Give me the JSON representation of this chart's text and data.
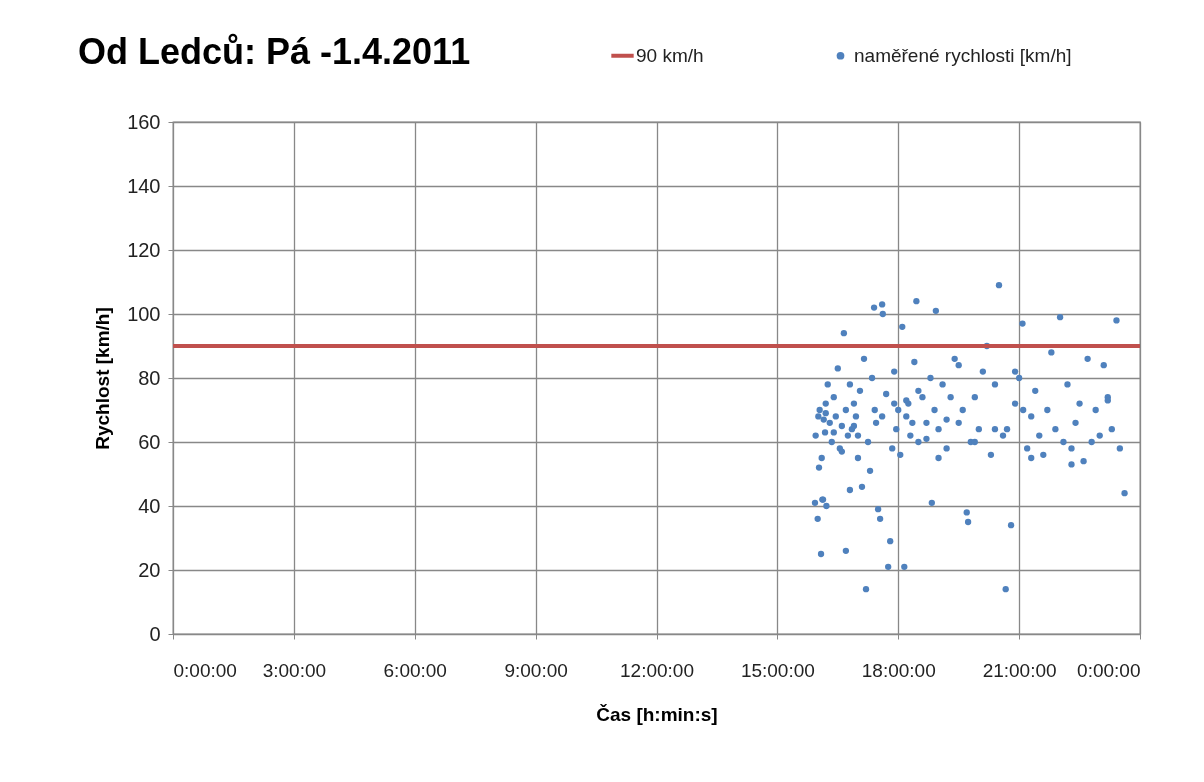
{
  "chart_data": {
    "type": "scatter",
    "title": "Od Ledců: Pá -1.4.2011",
    "xlabel": "Čas [h:min:s]",
    "ylabel": "Rychlost [km/h]",
    "xlim": [
      "2011-04-01T00:00",
      "2011-04-02T00:00"
    ],
    "xticks": [
      {
        "value": "2011-04-01T00:00",
        "label": "0:00:00"
      },
      {
        "value": "2011-04-01T03:00",
        "label": "3:00:00"
      },
      {
        "value": "2011-04-01T06:00",
        "label": "6:00:00"
      },
      {
        "value": "2011-04-01T09:00",
        "label": "9:00:00"
      },
      {
        "value": "2011-04-01T12:00",
        "label": "12:00:00"
      },
      {
        "value": "2011-04-01T15:00",
        "label": "15:00:00"
      },
      {
        "value": "2011-04-01T18:00",
        "label": "18:00:00"
      },
      {
        "value": "2011-04-01T21:00",
        "label": "21:00:00"
      },
      {
        "value": "2011-04-02T00:00",
        "label": "0:00:00"
      }
    ],
    "ylim": [
      0,
      160
    ],
    "yticks": [
      0,
      20,
      40,
      60,
      80,
      100,
      120,
      140,
      160
    ],
    "grid": true,
    "legend": "top right",
    "marker": "circle",
    "ref_lines": [
      {
        "axis": "y",
        "value": 90,
        "label": "90 km/h",
        "color": "#c0504d"
      }
    ],
    "series": [
      {
        "name": "naměřené rychlosti [km/h]",
        "color": "#4f81bd",
        "x": [
          "2011-04-01T15:56",
          "2011-04-01T15:57",
          "2011-04-01T16:00",
          "2011-04-01T16:01",
          "2011-04-01T16:03",
          "2011-04-01T16:05",
          "2011-04-01T16:06",
          "2011-04-01T16:07",
          "2011-04-01T16:09",
          "2011-04-01T16:11",
          "2011-04-01T16:12",
          "2011-04-01T16:13",
          "2011-04-01T16:15",
          "2011-04-01T16:18",
          "2011-04-01T16:21",
          "2011-04-01T16:24",
          "2011-04-01T16:27",
          "2011-04-01T16:30",
          "2011-04-01T16:33",
          "2011-04-01T16:36",
          "2011-04-01T16:39",
          "2011-04-01T16:42",
          "2011-04-01T16:45",
          "2011-04-01T16:48",
          "2011-04-01T16:51",
          "2011-04-01T16:54",
          "2011-04-01T16:57",
          "2011-04-01T17:00",
          "2011-04-01T17:03",
          "2011-04-01T17:06",
          "2011-04-01T17:09",
          "2011-04-01T17:12",
          "2011-04-01T17:15",
          "2011-04-01T17:18",
          "2011-04-01T17:21",
          "2011-04-01T17:24",
          "2011-04-01T17:25",
          "2011-04-01T17:27",
          "2011-04-01T17:30",
          "2011-04-01T17:33",
          "2011-04-01T17:36",
          "2011-04-01T17:37",
          "2011-04-01T17:42",
          "2011-04-01T17:45",
          "2011-04-01T17:48",
          "2011-04-01T17:51",
          "2011-04-01T17:54",
          "2011-04-01T17:57",
          "2011-04-01T18:00",
          "2011-04-01T18:03",
          "2011-04-01T18:06",
          "2011-04-01T18:09",
          "2011-04-01T18:12",
          "2011-04-01T18:15",
          "2011-04-01T18:18",
          "2011-04-01T18:21",
          "2011-04-01T18:24",
          "2011-04-01T18:27",
          "2011-04-01T18:30",
          "2011-04-01T18:36",
          "2011-04-01T18:42",
          "2011-04-01T18:48",
          "2011-04-01T18:50",
          "2011-04-01T18:54",
          "2011-04-01T18:56",
          "2011-04-01T19:00",
          "2011-04-01T19:06",
          "2011-04-01T19:12",
          "2011-04-01T19:18",
          "2011-04-01T19:24",
          "2011-04-01T19:30",
          "2011-04-01T19:36",
          "2011-04-01T19:42",
          "2011-04-01T19:44",
          "2011-04-01T19:48",
          "2011-04-01T19:54",
          "2011-04-01T20:00",
          "2011-04-01T20:06",
          "2011-04-01T20:12",
          "2011-04-01T20:18",
          "2011-04-01T20:24",
          "2011-04-01T20:30",
          "2011-04-01T20:36",
          "2011-04-01T20:40",
          "2011-04-01T20:42",
          "2011-04-01T20:48",
          "2011-04-01T20:54",
          "2011-04-01T21:00",
          "2011-04-01T21:05",
          "2011-04-01T21:12",
          "2011-04-01T21:18",
          "2011-04-01T21:24",
          "2011-04-01T21:30",
          "2011-04-01T21:36",
          "2011-04-01T21:42",
          "2011-04-01T21:48",
          "2011-04-01T21:54",
          "2011-04-01T22:01",
          "2011-04-01T22:06",
          "2011-04-01T22:12",
          "2011-04-01T22:18",
          "2011-04-01T22:24",
          "2011-04-01T22:30",
          "2011-04-01T22:36",
          "2011-04-01T22:42",
          "2011-04-01T22:48",
          "2011-04-01T22:54",
          "2011-04-01T23:00",
          "2011-04-01T23:06",
          "2011-04-01T23:12",
          "2011-04-01T23:18",
          "2011-04-01T23:25",
          "2011-04-01T23:30",
          "2011-04-01T23:37",
          "2011-04-01T16:02",
          "2011-04-01T16:08",
          "2011-04-01T16:42",
          "2011-04-01T16:48",
          "2011-04-01T16:24",
          "2011-04-01T16:54",
          "2011-04-01T17:36",
          "2011-04-01T18:12",
          "2011-04-01T18:42",
          "2011-04-01T19:12",
          "2011-04-01T19:54",
          "2011-04-01T20:24",
          "2011-04-01T21:18",
          "2011-04-01T22:18",
          "2011-04-01T23:12",
          "2011-04-01T16:36",
          "2011-04-01T17:54",
          "2011-04-01T19:30",
          "2011-04-01T20:54",
          "2011-04-01T16:12",
          "2011-04-01T17:00",
          "2011-04-01T18:30",
          "2011-04-01T19:00",
          "2011-04-01T21:06"
        ],
        "values": [
          41,
          62,
          36,
          68,
          70,
          25,
          55,
          42,
          67,
          63,
          72,
          40,
          78,
          66,
          60,
          74,
          68,
          83,
          58,
          65,
          94,
          70,
          62,
          78,
          64,
          72,
          68,
          55,
          76,
          46,
          86,
          14,
          60,
          51,
          80,
          102,
          70,
          66,
          39,
          36,
          103,
          100,
          75,
          21,
          29,
          58,
          82,
          64,
          70,
          56,
          96,
          21,
          68,
          72,
          62,
          66,
          85,
          104,
          60,
          74,
          66,
          80,
          41,
          70,
          101,
          64,
          78,
          58,
          74,
          86,
          66,
          70,
          38,
          35,
          60,
          74,
          64,
          82,
          90,
          56,
          78,
          109,
          62,
          14,
          64,
          34,
          72,
          80,
          97,
          58,
          68,
          76,
          62,
          56,
          70,
          88,
          64,
          99,
          60,
          78,
          53,
          66,
          72,
          54,
          86,
          60,
          70,
          62,
          84,
          74,
          64,
          98,
          58,
          44,
          52,
          42,
          26,
          45,
          63,
          65,
          68,
          73,
          61,
          67,
          60,
          64,
          55,
          58,
          73,
          57,
          72,
          84,
          82,
          69,
          62,
          76,
          55,
          70
        ]
      }
    ]
  }
}
